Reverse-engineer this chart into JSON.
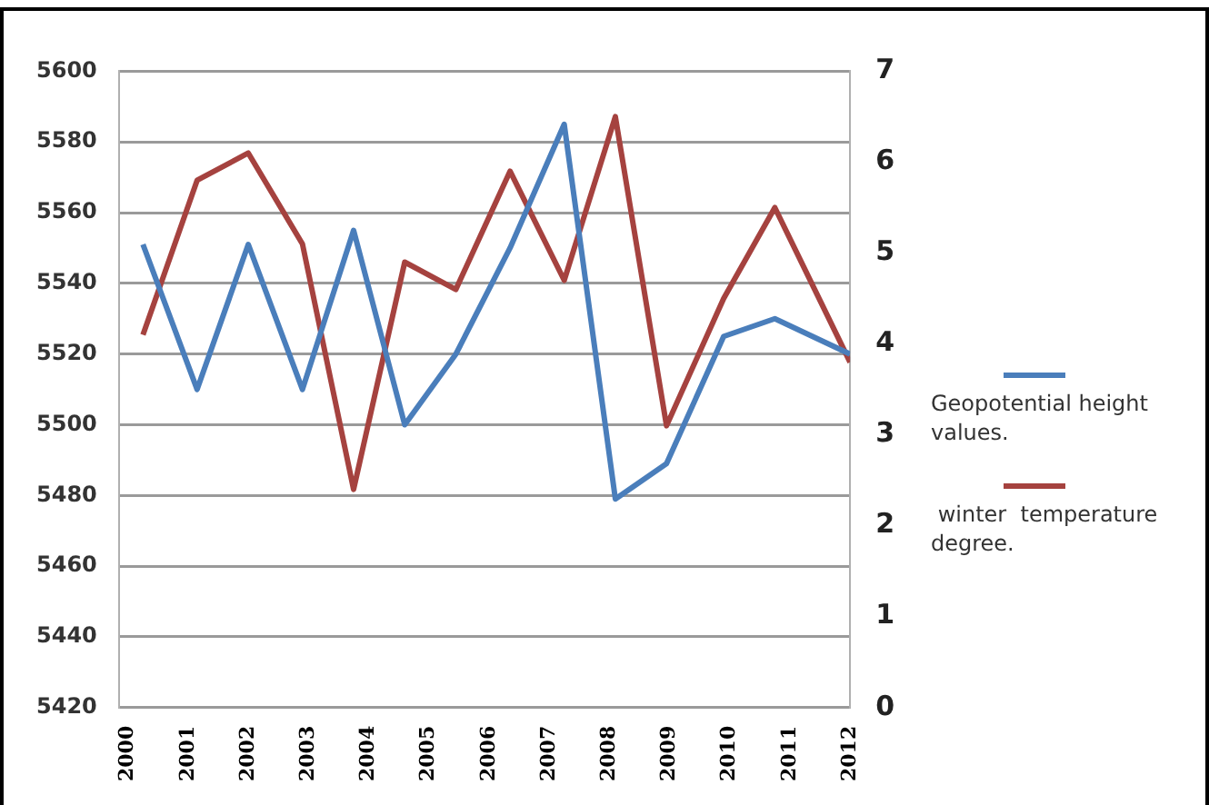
{
  "chart_data": {
    "type": "line",
    "x": [
      2000.25,
      2001.15,
      2002.0,
      2002.9,
      2003.75,
      2004.6,
      2005.45,
      2006.35,
      2007.25,
      2008.1,
      2008.95,
      2009.9,
      2010.75,
      2012
    ],
    "xlim": [
      1999.85,
      2012
    ],
    "xticks": [
      2000,
      2001,
      2002,
      2003,
      2004,
      2005,
      2006,
      2007,
      2008,
      2009,
      2010,
      2011,
      2012
    ],
    "series": [
      {
        "name": "Geopotential height values.",
        "color": "#4a7ebb",
        "values": [
          5551,
          5510,
          5551,
          5510,
          5555,
          5500,
          5520,
          5550,
          5585,
          5479,
          5489,
          5525,
          5530,
          5520
        ]
      },
      {
        "name": " winter  temperature degree.",
        "color": "#a5423f",
        "axis": "y2",
        "values": [
          4.1,
          5.8,
          6.1,
          5.1,
          2.4,
          4.9,
          4.6,
          5.9,
          4.7,
          6.5,
          3.1,
          4.5,
          5.5,
          3.8
        ]
      }
    ],
    "ylim": [
      5420,
      5600
    ],
    "yticks": [
      5420,
      5440,
      5460,
      5480,
      5500,
      5520,
      5540,
      5560,
      5580,
      5600
    ],
    "y2lim": [
      0,
      7
    ],
    "y2ticks": [
      0,
      1,
      2,
      3,
      4,
      5,
      6,
      7
    ],
    "grid": "y",
    "legend": "right",
    "marker": "none",
    "line_style": "solid"
  }
}
